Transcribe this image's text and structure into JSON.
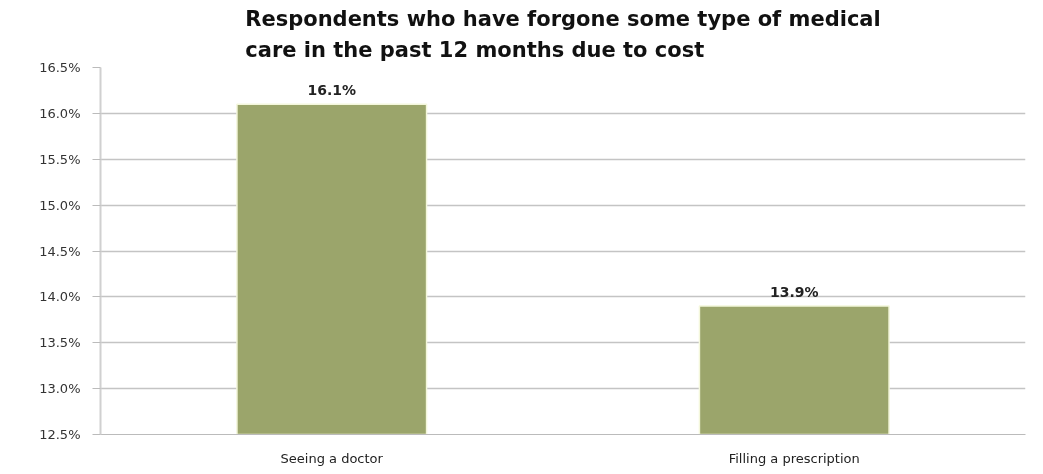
{
  "chart_data": {
    "type": "bar",
    "title": "Respondents who have forgone some type of medical care in the past 12 months due to cost",
    "categories": [
      "Seeing a doctor",
      "Filling a prescription"
    ],
    "values": [
      16.1,
      13.9
    ],
    "value_labels": [
      "16.1%",
      "13.9%"
    ],
    "color": "#9ba56b",
    "ylim": [
      12.5,
      16.5
    ],
    "yticks": [
      {
        "value": 12.5,
        "label": "12.5%"
      },
      {
        "value": 13.0,
        "label": "13.0%"
      },
      {
        "value": 13.5,
        "label": "13.5%"
      },
      {
        "value": 14.0,
        "label": "14.0%"
      },
      {
        "value": 14.5,
        "label": "14.5%"
      },
      {
        "value": 15.0,
        "label": "15.0%"
      },
      {
        "value": 15.5,
        "label": "15.5%"
      },
      {
        "value": 16.0,
        "label": "16.0%"
      },
      {
        "value": 16.5,
        "label": "16.5%"
      }
    ],
    "grid": "y"
  }
}
